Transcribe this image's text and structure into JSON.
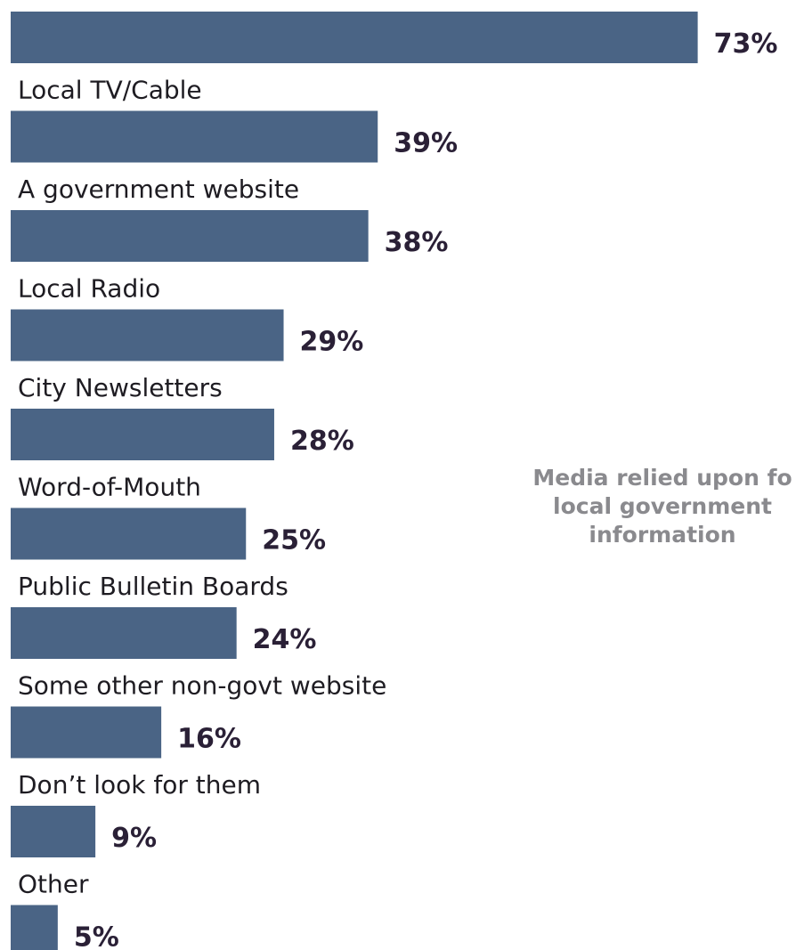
{
  "chart_data": {
    "type": "bar",
    "orientation": "horizontal",
    "title": "Media relied upon for local government information",
    "title_lines": [
      "Media relied upon fo",
      "local government",
      "information"
    ],
    "categories": [
      "",
      "Local TV/Cable",
      "A government website",
      "Local Radio",
      "City Newsletters",
      "Word-of-Mouth",
      "Public Bulletin Boards",
      "Some other non-govt website",
      "Don’t look for them",
      "Other"
    ],
    "values": [
      73,
      39,
      38,
      29,
      28,
      25,
      24,
      16,
      9,
      5
    ],
    "value_labels": [
      "73%",
      "39%",
      "38%",
      "29%",
      "28%",
      "25%",
      "24%",
      "16%",
      "9%",
      "5%"
    ],
    "unit": "%",
    "bar_color": "#4a6485",
    "grid": false,
    "legend": "none"
  }
}
